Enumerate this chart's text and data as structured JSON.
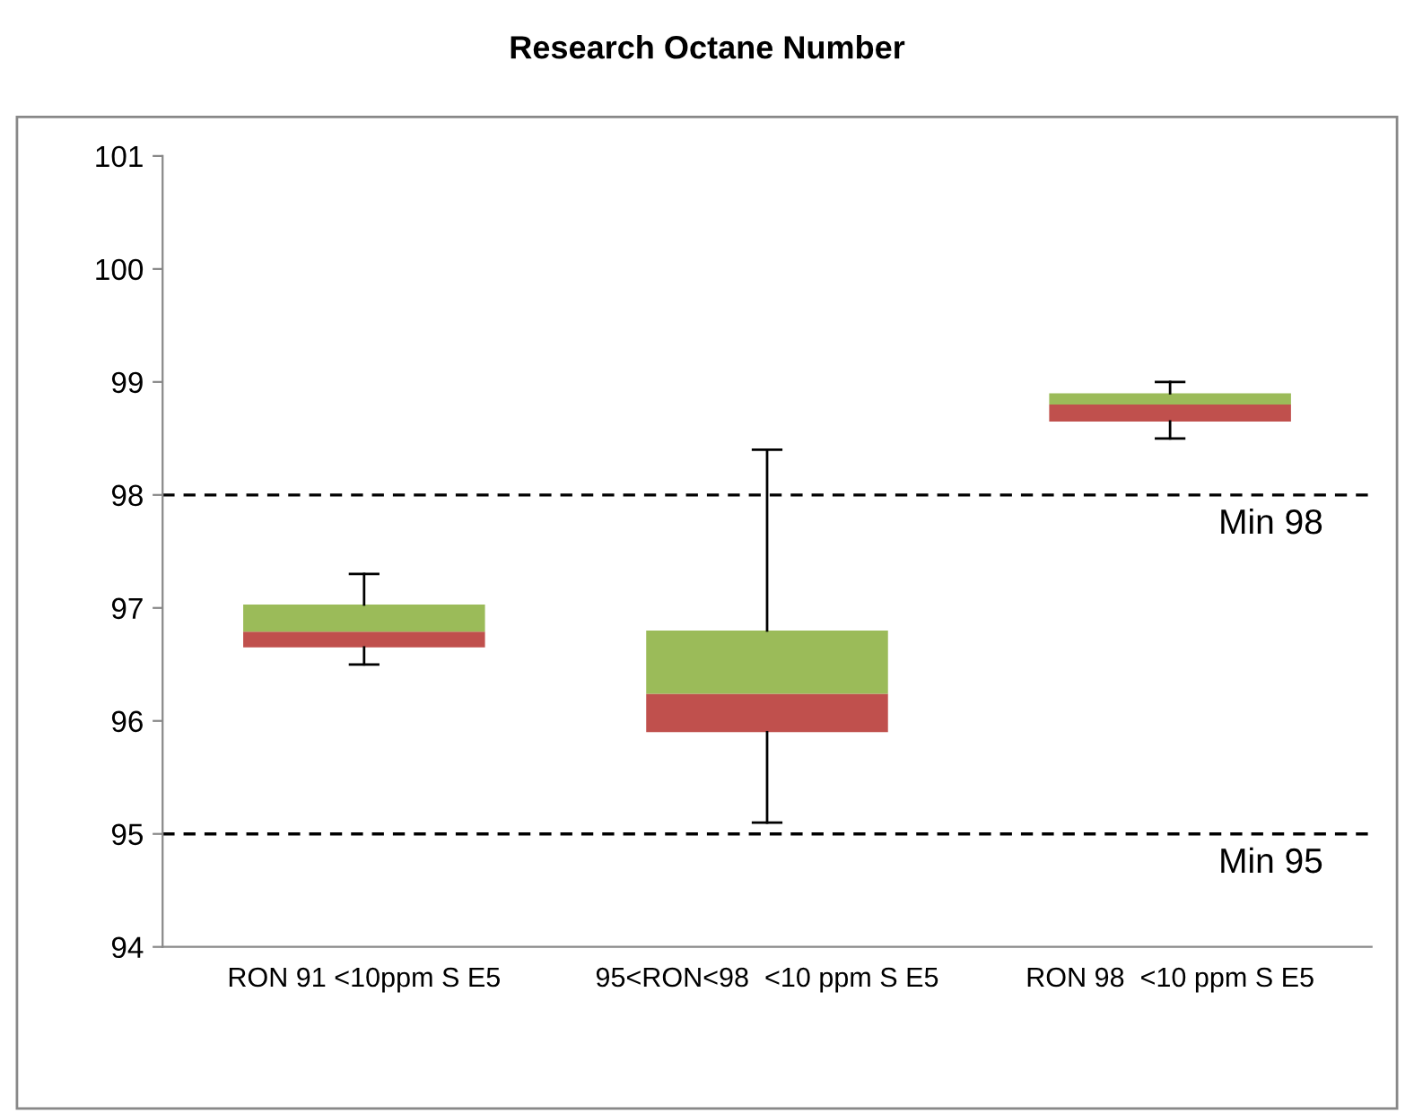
{
  "chart_data": {
    "type": "box",
    "title": "Research Octane Number",
    "categories": [
      "RON 91 <10ppm S E5",
      "95<RON<98  <10 ppm S E5",
      "RON 98  <10 ppm S E5"
    ],
    "series": [
      {
        "color": "#c0504d",
        "boxes": [
          {
            "low": 96.5,
            "q1": 96.65,
            "median": 96.79,
            "q3": 97.03,
            "high": 97.3
          },
          {
            "low": 95.1,
            "q1": 95.9,
            "median": 96.24,
            "q3": 96.8,
            "high": 98.4
          },
          {
            "low": 98.5,
            "q1": 98.65,
            "median": 98.8,
            "q3": 98.9,
            "high": 99.0
          }
        ]
      }
    ],
    "colors": [
      "#9bbb59",
      "#9bbb59",
      "#9bbb59"
    ],
    "ylim": [
      94,
      101
    ],
    "yticks": [
      94,
      95,
      96,
      97,
      98,
      99,
      100,
      101
    ],
    "ref_lines": [
      {
        "axis": "y",
        "value": 98,
        "label": "Min 98",
        "line_style": "dashed",
        "color": "#000000"
      },
      {
        "axis": "y",
        "value": 95,
        "label": "Min 95",
        "line_style": "dashed",
        "color": "#000000"
      }
    ],
    "grid": false,
    "legend": false
  }
}
